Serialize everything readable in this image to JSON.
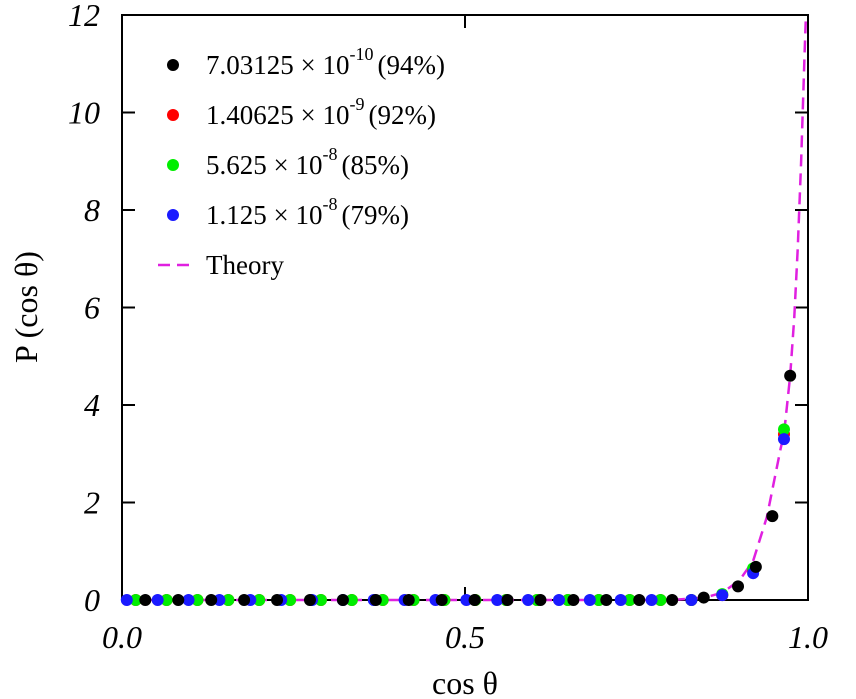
{
  "chart_data": {
    "type": "scatter",
    "x_label": "cos θ",
    "y_label": "P (cos θ)",
    "xlim": [
      0,
      1
    ],
    "ylim": [
      0,
      12
    ],
    "xticks": [
      {
        "value": 0,
        "label": "0.0"
      },
      0.5,
      {
        "value": 1,
        "label": "1.0"
      }
    ],
    "yticks": [
      0,
      2,
      4,
      6,
      8,
      10,
      12
    ],
    "series": [
      {
        "name": {
          "text": "7.03125 × 10",
          "sup": "-10",
          "rest": "(94%)"
        },
        "color": "#000000",
        "x": [
          0.034,
          0.082,
          0.13,
          0.178,
          0.226,
          0.274,
          0.322,
          0.37,
          0.418,
          0.466,
          0.514,
          0.562,
          0.61,
          0.658,
          0.706,
          0.754,
          0.802,
          0.848,
          0.898,
          0.924,
          0.948,
          0.974
        ],
        "values": [
          0,
          0,
          0,
          0,
          0,
          0,
          0,
          0,
          0,
          0,
          0,
          0,
          0,
          0,
          0,
          0,
          0,
          0.05,
          0.28,
          0.68,
          1.72,
          4.6
        ]
      },
      {
        "name": {
          "text": "1.40625 × 10",
          "sup": "-9",
          "rest": "(92%)"
        },
        "color": "#ff0000",
        "x": [
          0.02,
          0.065,
          0.11,
          0.155,
          0.2,
          0.245,
          0.29,
          0.335,
          0.38,
          0.425,
          0.47,
          0.515,
          0.56,
          0.605,
          0.65,
          0.695,
          0.74,
          0.785,
          0.83,
          0.875,
          0.92,
          0.965
        ],
        "values": [
          0,
          0,
          0,
          0,
          0,
          0,
          0,
          0,
          0,
          0,
          0,
          0,
          0,
          0,
          0,
          0,
          0,
          0,
          0,
          0.1,
          0.6,
          3.4
        ]
      },
      {
        "name": {
          "text": "5.625 × 10",
          "sup": "-8",
          "rest": "(85%)"
        },
        "color": "#00ee00",
        "x": [
          0.02,
          0.065,
          0.11,
          0.155,
          0.2,
          0.245,
          0.29,
          0.335,
          0.38,
          0.425,
          0.47,
          0.515,
          0.56,
          0.605,
          0.65,
          0.695,
          0.74,
          0.785,
          0.83,
          0.875,
          0.92,
          0.965
        ],
        "values": [
          0,
          0,
          0,
          0,
          0,
          0,
          0,
          0,
          0,
          0,
          0,
          0,
          0,
          0,
          0,
          0,
          0,
          0,
          0,
          0.12,
          0.65,
          3.5
        ]
      },
      {
        "name": {
          "text": "1.125 × 10",
          "sup": "-8",
          "rest": "(79%)"
        },
        "color": "#1a1aff",
        "x": [
          0.007,
          0.052,
          0.097,
          0.142,
          0.187,
          0.232,
          0.277,
          0.322,
          0.367,
          0.412,
          0.457,
          0.502,
          0.547,
          0.592,
          0.637,
          0.682,
          0.727,
          0.772,
          0.83,
          0.875,
          0.92,
          0.965
        ],
        "values": [
          0,
          0,
          0,
          0,
          0,
          0,
          0,
          0,
          0,
          0,
          0,
          0,
          0,
          0,
          0,
          0,
          0,
          0,
          0,
          0.1,
          0.55,
          3.3
        ]
      }
    ],
    "theory": {
      "name": "Theory",
      "color": "#e020e0",
      "x": [
        0.0,
        0.8,
        0.85,
        0.875,
        0.9,
        0.92,
        0.94,
        0.95,
        0.96,
        0.965,
        0.974,
        0.98,
        0.985,
        0.99,
        0.995,
        0.997
      ],
      "values": [
        0,
        0,
        0.05,
        0.15,
        0.4,
        0.8,
        1.7,
        2.4,
        3.1,
        3.4,
        4.6,
        5.8,
        7.2,
        9.0,
        11.2,
        12
      ]
    }
  }
}
